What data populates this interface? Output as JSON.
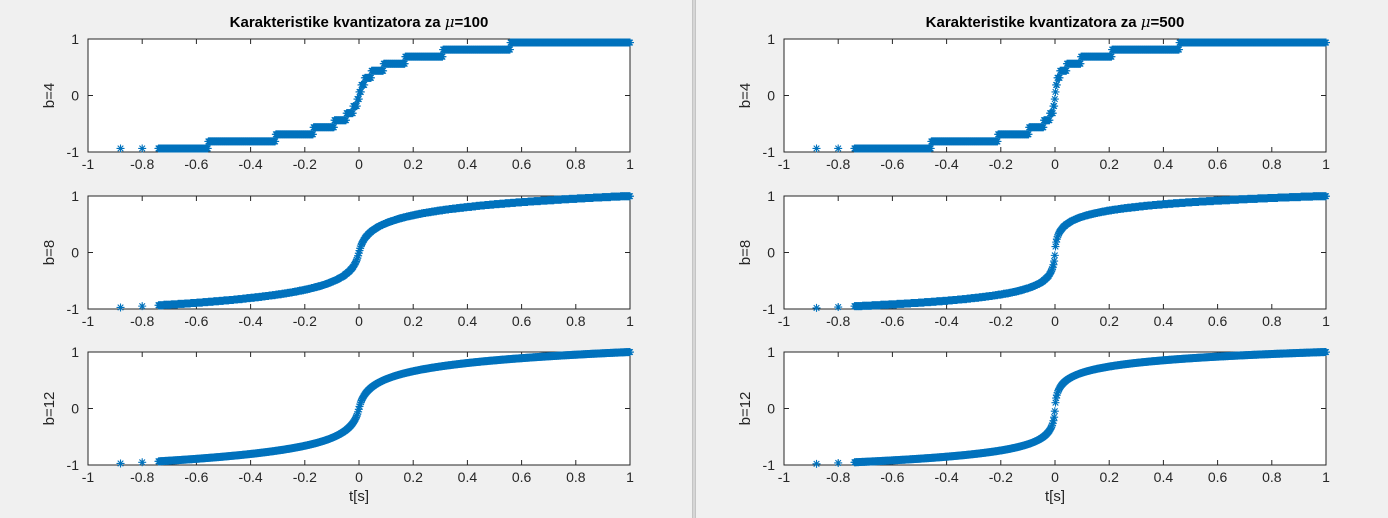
{
  "figure": {
    "divider": true
  },
  "chart_data": [
    {
      "id": "left",
      "type": "scatter",
      "marker": "asterisk",
      "color": "#0072bd",
      "title_prefix": "Karakteristike kvantizatora za ",
      "title_symbol": "μ",
      "title_suffix": "=100",
      "mu": 100,
      "xlabel": "t[s]",
      "xlim": [
        -1,
        1
      ],
      "ylim": [
        -1,
        1
      ],
      "xticks": [
        "-1",
        "-0.8",
        "-0.6",
        "-0.4",
        "-0.2",
        "0",
        "0.2",
        "0.4",
        "0.6",
        "0.8",
        "1"
      ],
      "yticks": [
        "-1",
        "0",
        "1"
      ],
      "subplots": [
        {
          "ylabel": "b=4",
          "bits": 4
        },
        {
          "ylabel": "b=8",
          "bits": 8
        },
        {
          "ylabel": "b=12",
          "bits": 12
        }
      ]
    },
    {
      "id": "right",
      "type": "scatter",
      "marker": "asterisk",
      "color": "#0072bd",
      "title_prefix": "Karakteristike kvantizatora za ",
      "title_symbol": "μ",
      "title_suffix": "=500",
      "mu": 500,
      "xlabel": "t[s]",
      "xlim": [
        -1,
        1
      ],
      "ylim": [
        -1,
        1
      ],
      "xticks": [
        "-1",
        "-0.8",
        "-0.6",
        "-0.4",
        "-0.2",
        "0",
        "0.2",
        "0.4",
        "0.6",
        "0.8",
        "1"
      ],
      "yticks": [
        "-1",
        "0",
        "1"
      ],
      "subplots": [
        {
          "ylabel": "b=4",
          "bits": 4
        },
        {
          "ylabel": "b=8",
          "bits": 8
        },
        {
          "ylabel": "b=12",
          "bits": 12
        }
      ]
    }
  ]
}
